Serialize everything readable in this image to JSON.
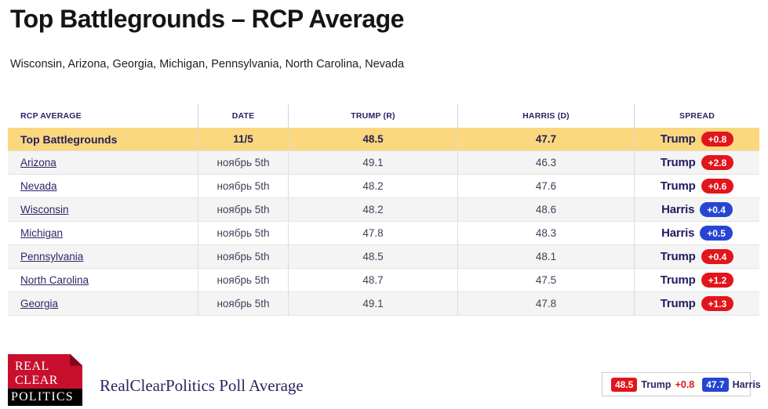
{
  "page": {
    "title": "Top Battlegrounds – RCP Average",
    "subtitle": "Wisconsin, Arizona, Georgia, Michigan, Pennsylvania, North Carolina, Nevada"
  },
  "colors": {
    "trump_red": "#e1151b",
    "harris_blue": "#2646d2",
    "highlight_yellow": "#fbd77e",
    "logo_red": "#c8102e",
    "navy_text": "#221e5e"
  },
  "table": {
    "columns": [
      "RCP AVERAGE",
      "DATE",
      "TRUMP (R)",
      "HARRIS (D)",
      "SPREAD"
    ],
    "rows": [
      {
        "name": "Top Battlegrounds",
        "date": "11/5",
        "trump": "48.5",
        "harris": "47.7",
        "leader": "Trump",
        "margin": "+0.8",
        "highlight": true
      },
      {
        "name": "Arizona",
        "date": "ноябрь 5th",
        "trump": "49.1",
        "harris": "46.3",
        "leader": "Trump",
        "margin": "+2.8"
      },
      {
        "name": "Nevada",
        "date": "ноябрь 5th",
        "trump": "48.2",
        "harris": "47.6",
        "leader": "Trump",
        "margin": "+0.6"
      },
      {
        "name": "Wisconsin",
        "date": "ноябрь 5th",
        "trump": "48.2",
        "harris": "48.6",
        "leader": "Harris",
        "margin": "+0.4"
      },
      {
        "name": "Michigan",
        "date": "ноябрь 5th",
        "trump": "47.8",
        "harris": "48.3",
        "leader": "Harris",
        "margin": "+0.5"
      },
      {
        "name": "Pennsylvania",
        "date": "ноябрь 5th",
        "trump": "48.5",
        "harris": "48.1",
        "leader": "Trump",
        "margin": "+0.4"
      },
      {
        "name": "North Carolina",
        "date": "ноябрь 5th",
        "trump": "48.7",
        "harris": "47.5",
        "leader": "Trump",
        "margin": "+1.2"
      },
      {
        "name": "Georgia",
        "date": "ноябрь 5th",
        "trump": "49.1",
        "harris": "47.8",
        "leader": "Trump",
        "margin": "+1.3"
      }
    ]
  },
  "footer": {
    "logo": {
      "line1": "REAL",
      "line2": "CLEAR",
      "line3": "POLITICS"
    },
    "tagline": "RealClearPolitics Poll Average",
    "legend": {
      "trump_value": "48.5",
      "trump_label": "Trump",
      "trump_margin": "+0.8",
      "harris_value": "47.7",
      "harris_label": "Harris"
    }
  }
}
